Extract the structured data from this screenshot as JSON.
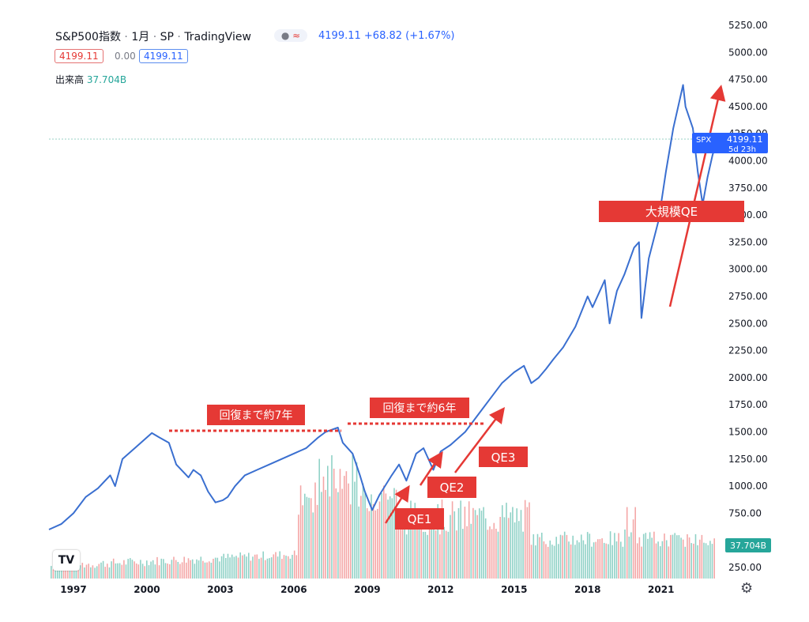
{
  "header": {
    "symbol": "S&P500指数",
    "interval": "1月",
    "exchange": "SP",
    "provider": "TradingView",
    "last_price": "4199.11",
    "change": "+68.82",
    "change_pct": "(+1.67%)",
    "sell_price": "4199.11",
    "spread": "0.00",
    "buy_price": "4199.11"
  },
  "volume_label": "出来高",
  "volume_value": "37.704B",
  "price_tag": {
    "symbol": "SPX",
    "price": "4199.11",
    "countdown": "5d 23h"
  },
  "colors": {
    "line": "#3a6fd0",
    "annotation": "#e53935",
    "volume_up": "#8fd1c6",
    "volume_down": "#f4a6a6",
    "tag": "#2962ff",
    "volume_tag": "#26a69a"
  },
  "chart_data": {
    "type": "line",
    "title": "",
    "x_ticks": [
      "1997",
      "2000",
      "2003",
      "2006",
      "2009",
      "2012",
      "2015",
      "2018",
      "2021"
    ],
    "y_ticks": [
      "250.00",
      "750.00",
      "1000.00",
      "1250.00",
      "1500.00",
      "1750.00",
      "2000.00",
      "2250.00",
      "2500.00",
      "2750.00",
      "3000.00",
      "3250.00",
      "3500.00",
      "3750.00",
      "4000.00",
      "4250.00",
      "4500.00",
      "4750.00",
      "5000.00",
      "5250.00"
    ],
    "ylim": [
      50,
      5300
    ],
    "xlim": [
      1996.0,
      2023.3
    ],
    "series": [
      {
        "x": [
          1996.0,
          1996.5,
          1997.0,
          1997.5,
          1998.0,
          1998.5,
          1998.7,
          1999.0,
          1999.5,
          2000.0,
          2000.2,
          2000.5,
          2000.9,
          2001.2,
          2001.7,
          2001.9,
          2002.2,
          2002.5,
          2002.8,
          2003.1,
          2003.3,
          2003.6,
          2004.0,
          2004.5,
          2005.0,
          2005.5,
          2006.0,
          2006.5,
          2007.0,
          2007.3,
          2007.8,
          2008.0,
          2008.4,
          2008.7,
          2008.9,
          2009.2,
          2009.5,
          2010.0,
          2010.3,
          2010.6,
          2011.0,
          2011.3,
          2011.7,
          2012.0,
          2012.4,
          2013.0,
          2013.5,
          2014.0,
          2014.5,
          2015.0,
          2015.4,
          2015.7,
          2016.0,
          2016.3,
          2016.6,
          2017.0,
          2017.5,
          2018.0,
          2018.2,
          2018.7,
          2018.9,
          2019.2,
          2019.5,
          2019.9,
          2020.1,
          2020.2,
          2020.5,
          2020.9,
          2021.2,
          2021.5,
          2021.9,
          2022.0,
          2022.3,
          2022.5,
          2022.7,
          2022.9,
          2023.1,
          2023.3
        ],
        "y": [
          600,
          650,
          750,
          900,
          980,
          1100,
          1000,
          1250,
          1350,
          1450,
          1490,
          1450,
          1400,
          1200,
          1080,
          1150,
          1100,
          950,
          850,
          870,
          900,
          1000,
          1100,
          1150,
          1200,
          1250,
          1300,
          1350,
          1450,
          1500,
          1540,
          1400,
          1300,
          1100,
          950,
          780,
          920,
          1100,
          1200,
          1050,
          1300,
          1350,
          1150,
          1320,
          1380,
          1500,
          1650,
          1800,
          1950,
          2050,
          2110,
          1950,
          2000,
          2080,
          2170,
          2280,
          2470,
          2750,
          2650,
          2900,
          2500,
          2800,
          2950,
          3200,
          3250,
          2550,
          3100,
          3450,
          3900,
          4300,
          4700,
          4500,
          4300,
          3900,
          3600,
          3850,
          4050,
          4199
        ]
      }
    ]
  },
  "annotations": {
    "recovery_1": "回復まで約7年",
    "recovery_2": "回復まで約6年",
    "qe1": "QE1",
    "qe2": "QE2",
    "qe3": "QE3",
    "big_qe": "大規模QE"
  }
}
